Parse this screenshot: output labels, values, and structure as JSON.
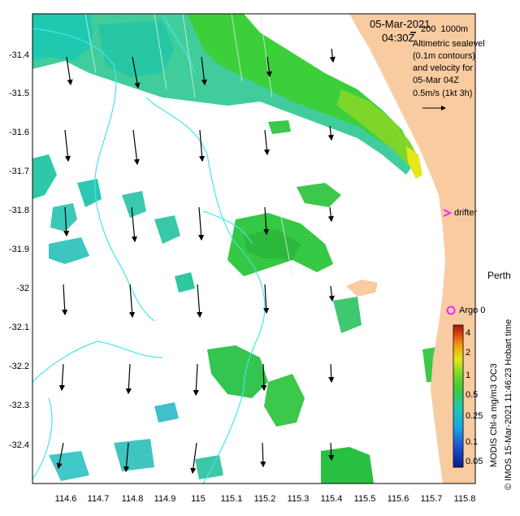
{
  "header": {
    "date": "05-Mar-2021",
    "time": "04:30Z",
    "depth_scale": "200  1000m"
  },
  "legend_box": {
    "lines": [
      "Altimetric sealevel",
      "(0.1m contours)",
      "and velocity for",
      "05-Mar 04Z",
      "0.5m/s (1kt 3h)"
    ]
  },
  "labels": {
    "drifter": "drifter",
    "argo": "Argo 0",
    "city": "Perth"
  },
  "axes": {
    "x_ticks": [
      "114.6",
      "114.7",
      "114.8",
      "114.9",
      "115",
      "115.1",
      "115.2",
      "115.3",
      "115.4",
      "115.5",
      "115.6",
      "115.7",
      "115.8"
    ],
    "y_ticks": [
      "-31.4",
      "-31.5",
      "-31.6",
      "-31.7",
      "-31.8",
      "-31.9",
      "-32",
      "-32.1",
      "-32.2",
      "-32.3",
      "-32.4"
    ]
  },
  "colorbar": {
    "label": "MODIS Chl-a mg/m3 OC3",
    "ticks": [
      "4",
      "2",
      "1",
      "0.5",
      "0.25",
      "0.1",
      "0.05"
    ]
  },
  "credit": "© IMOS 15-Mar-2021 11:46:23 Hobart time",
  "colors": {
    "land": "#f9cba0",
    "contour": "#44e6f0",
    "drifter": "#ff22ff",
    "argo": "#ff22ff"
  }
}
